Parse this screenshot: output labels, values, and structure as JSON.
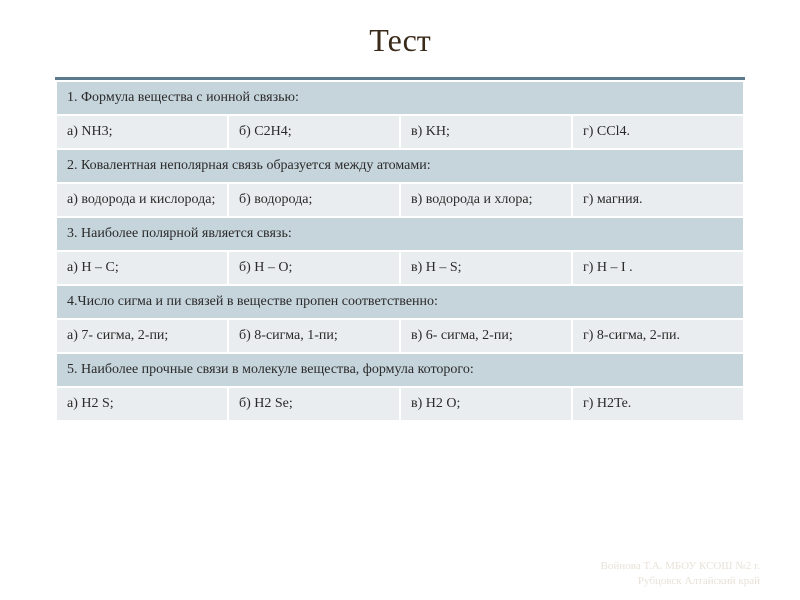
{
  "title": "Тест",
  "style": {
    "bg": "#ffffff",
    "title_color": "#3a2a1a",
    "title_fontsize": 32,
    "header_row_bg": "#c6d4dc",
    "option_row_bg": "#e9edef",
    "cell_border_color": "#ffffff",
    "cell_border_width": 2,
    "top_accent_color": "#5b7a8c",
    "text_color": "#2a2a2a",
    "cell_fontsize": 14,
    "font_family": "Georgia, Times New Roman, serif"
  },
  "q1": {
    "prompt": "1. Формула вещества с ионной связью:",
    "a": "а) NH3;",
    "b": " б) C2H4;",
    "c": "в) KH;",
    "d": "г) CCl4."
  },
  "q2": {
    "prompt": "2. Ковалентная неполярная связь образуется между атомами:",
    "a": "а) водорода и кислорода;",
    "b": "б) водорода;",
    "c": "в) водорода и хлора;",
    "d": "г) магния."
  },
  "q3": {
    "prompt": "3. Наиболее полярной является связь:",
    "a": "а) H – C;",
    "b": " б) H – O;",
    "c": "в) H – S;",
    "d": " г)  H – I ."
  },
  "q4": {
    "prompt": "4.Число сигма и пи связей в веществе пропен соответственно:",
    "a": "а) 7- сигма, 2-пи;",
    "b": "б) 8-сигма, 1-пи;",
    "c": "в) 6- сигма, 2-пи;",
    "d": "г) 8-сигма, 2-пи."
  },
  "q5": {
    "prompt": "5. Наиболее прочные связи в молекуле вещества, формула которого:",
    "a": "а) H2 S;",
    "b": " б) H2 Se;",
    "c": " в) H2 O;",
    "d": "г) H2Te."
  },
  "footer": {
    "line1": "Войнова Т.А. МБОУ КСОШ №2 г.",
    "line2": "Рубцовск Алтайский край"
  }
}
